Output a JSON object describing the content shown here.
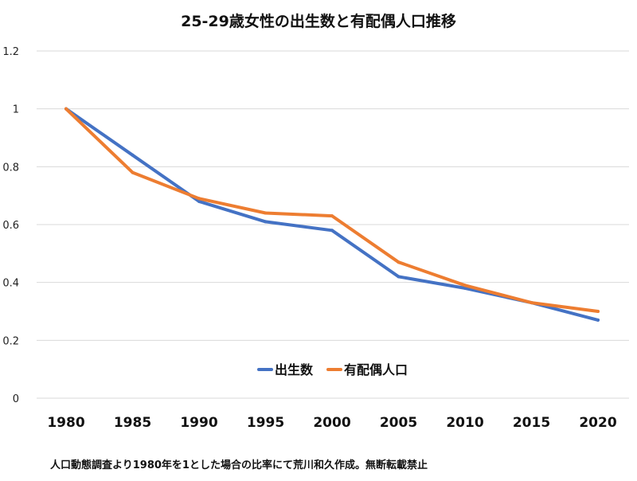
{
  "chart_data": {
    "type": "line",
    "title": "25-29歳女性の出生数と有配偶人口推移",
    "x": [
      "1980",
      "1985",
      "1990",
      "1995",
      "2000",
      "2005",
      "2010",
      "2015",
      "2020"
    ],
    "series": [
      {
        "name": "出生数",
        "color": "#4472c4",
        "values": [
          1.0,
          0.84,
          0.68,
          0.61,
          0.58,
          0.42,
          0.38,
          0.33,
          0.27
        ]
      },
      {
        "name": "有配偶人口",
        "color": "#ed7d31",
        "values": [
          1.0,
          0.78,
          0.69,
          0.64,
          0.63,
          0.47,
          0.39,
          0.33,
          0.3
        ]
      }
    ],
    "yticks": [
      "0",
      "0.2",
      "0.4",
      "0.6",
      "0.8",
      "1",
      "1.2"
    ],
    "ylim": [
      0,
      1.2
    ],
    "grid": true,
    "legend_position": "bottom-center"
  },
  "footnote": "人口動態調査より1980年を1とした場合の比率にて荒川和久作成。無断転載禁止"
}
